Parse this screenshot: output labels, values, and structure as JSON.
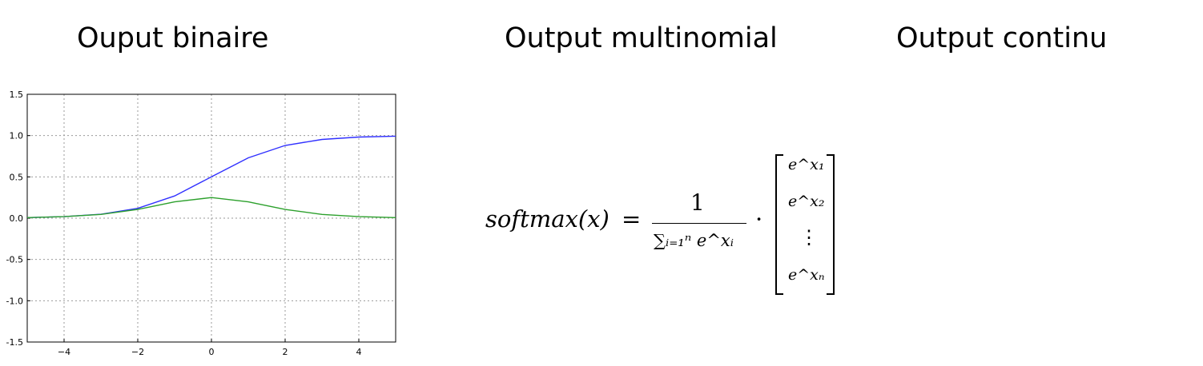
{
  "headings": {
    "binary": "Ouput binaire",
    "multinomial": "Output multinomial",
    "continuous": "Output continu"
  },
  "formula": {
    "lhs": "softmax(x)",
    "equals": "=",
    "numerator": "1",
    "denominator": "∑ᵢ₌₁ⁿ e^xᵢ",
    "dot": "·",
    "vector": [
      "e^x₁",
      "e^x₂",
      "⋮",
      "e^xₙ"
    ]
  },
  "chart_data": {
    "type": "line",
    "title": "",
    "xlabel": "",
    "ylabel": "",
    "xlim": [
      -5,
      5
    ],
    "ylim": [
      -1.5,
      1.5
    ],
    "grid": true,
    "x_ticks": [
      -4,
      -2,
      0,
      2,
      4
    ],
    "y_ticks": [
      -1.5,
      -1.0,
      -0.5,
      0.0,
      0.5,
      1.0,
      1.5
    ],
    "x_tick_labels": [
      "−4",
      "−2",
      "0",
      "2",
      "4"
    ],
    "y_tick_labels": [
      "-1.5",
      "-1.0",
      "-0.5",
      "0.0",
      "0.5",
      "1.0",
      "1.5"
    ],
    "x": [
      -5,
      -4,
      -3,
      -2,
      -1,
      0,
      1,
      2,
      3,
      4,
      5
    ],
    "series": [
      {
        "color": "#3030ff",
        "values": [
          0.007,
          0.018,
          0.047,
          0.119,
          0.269,
          0.5,
          0.731,
          0.881,
          0.953,
          0.982,
          0.993
        ]
      },
      {
        "color": "#2ca02c",
        "values": [
          0.007,
          0.018,
          0.045,
          0.105,
          0.197,
          0.25,
          0.197,
          0.105,
          0.045,
          0.018,
          0.007
        ]
      }
    ]
  }
}
